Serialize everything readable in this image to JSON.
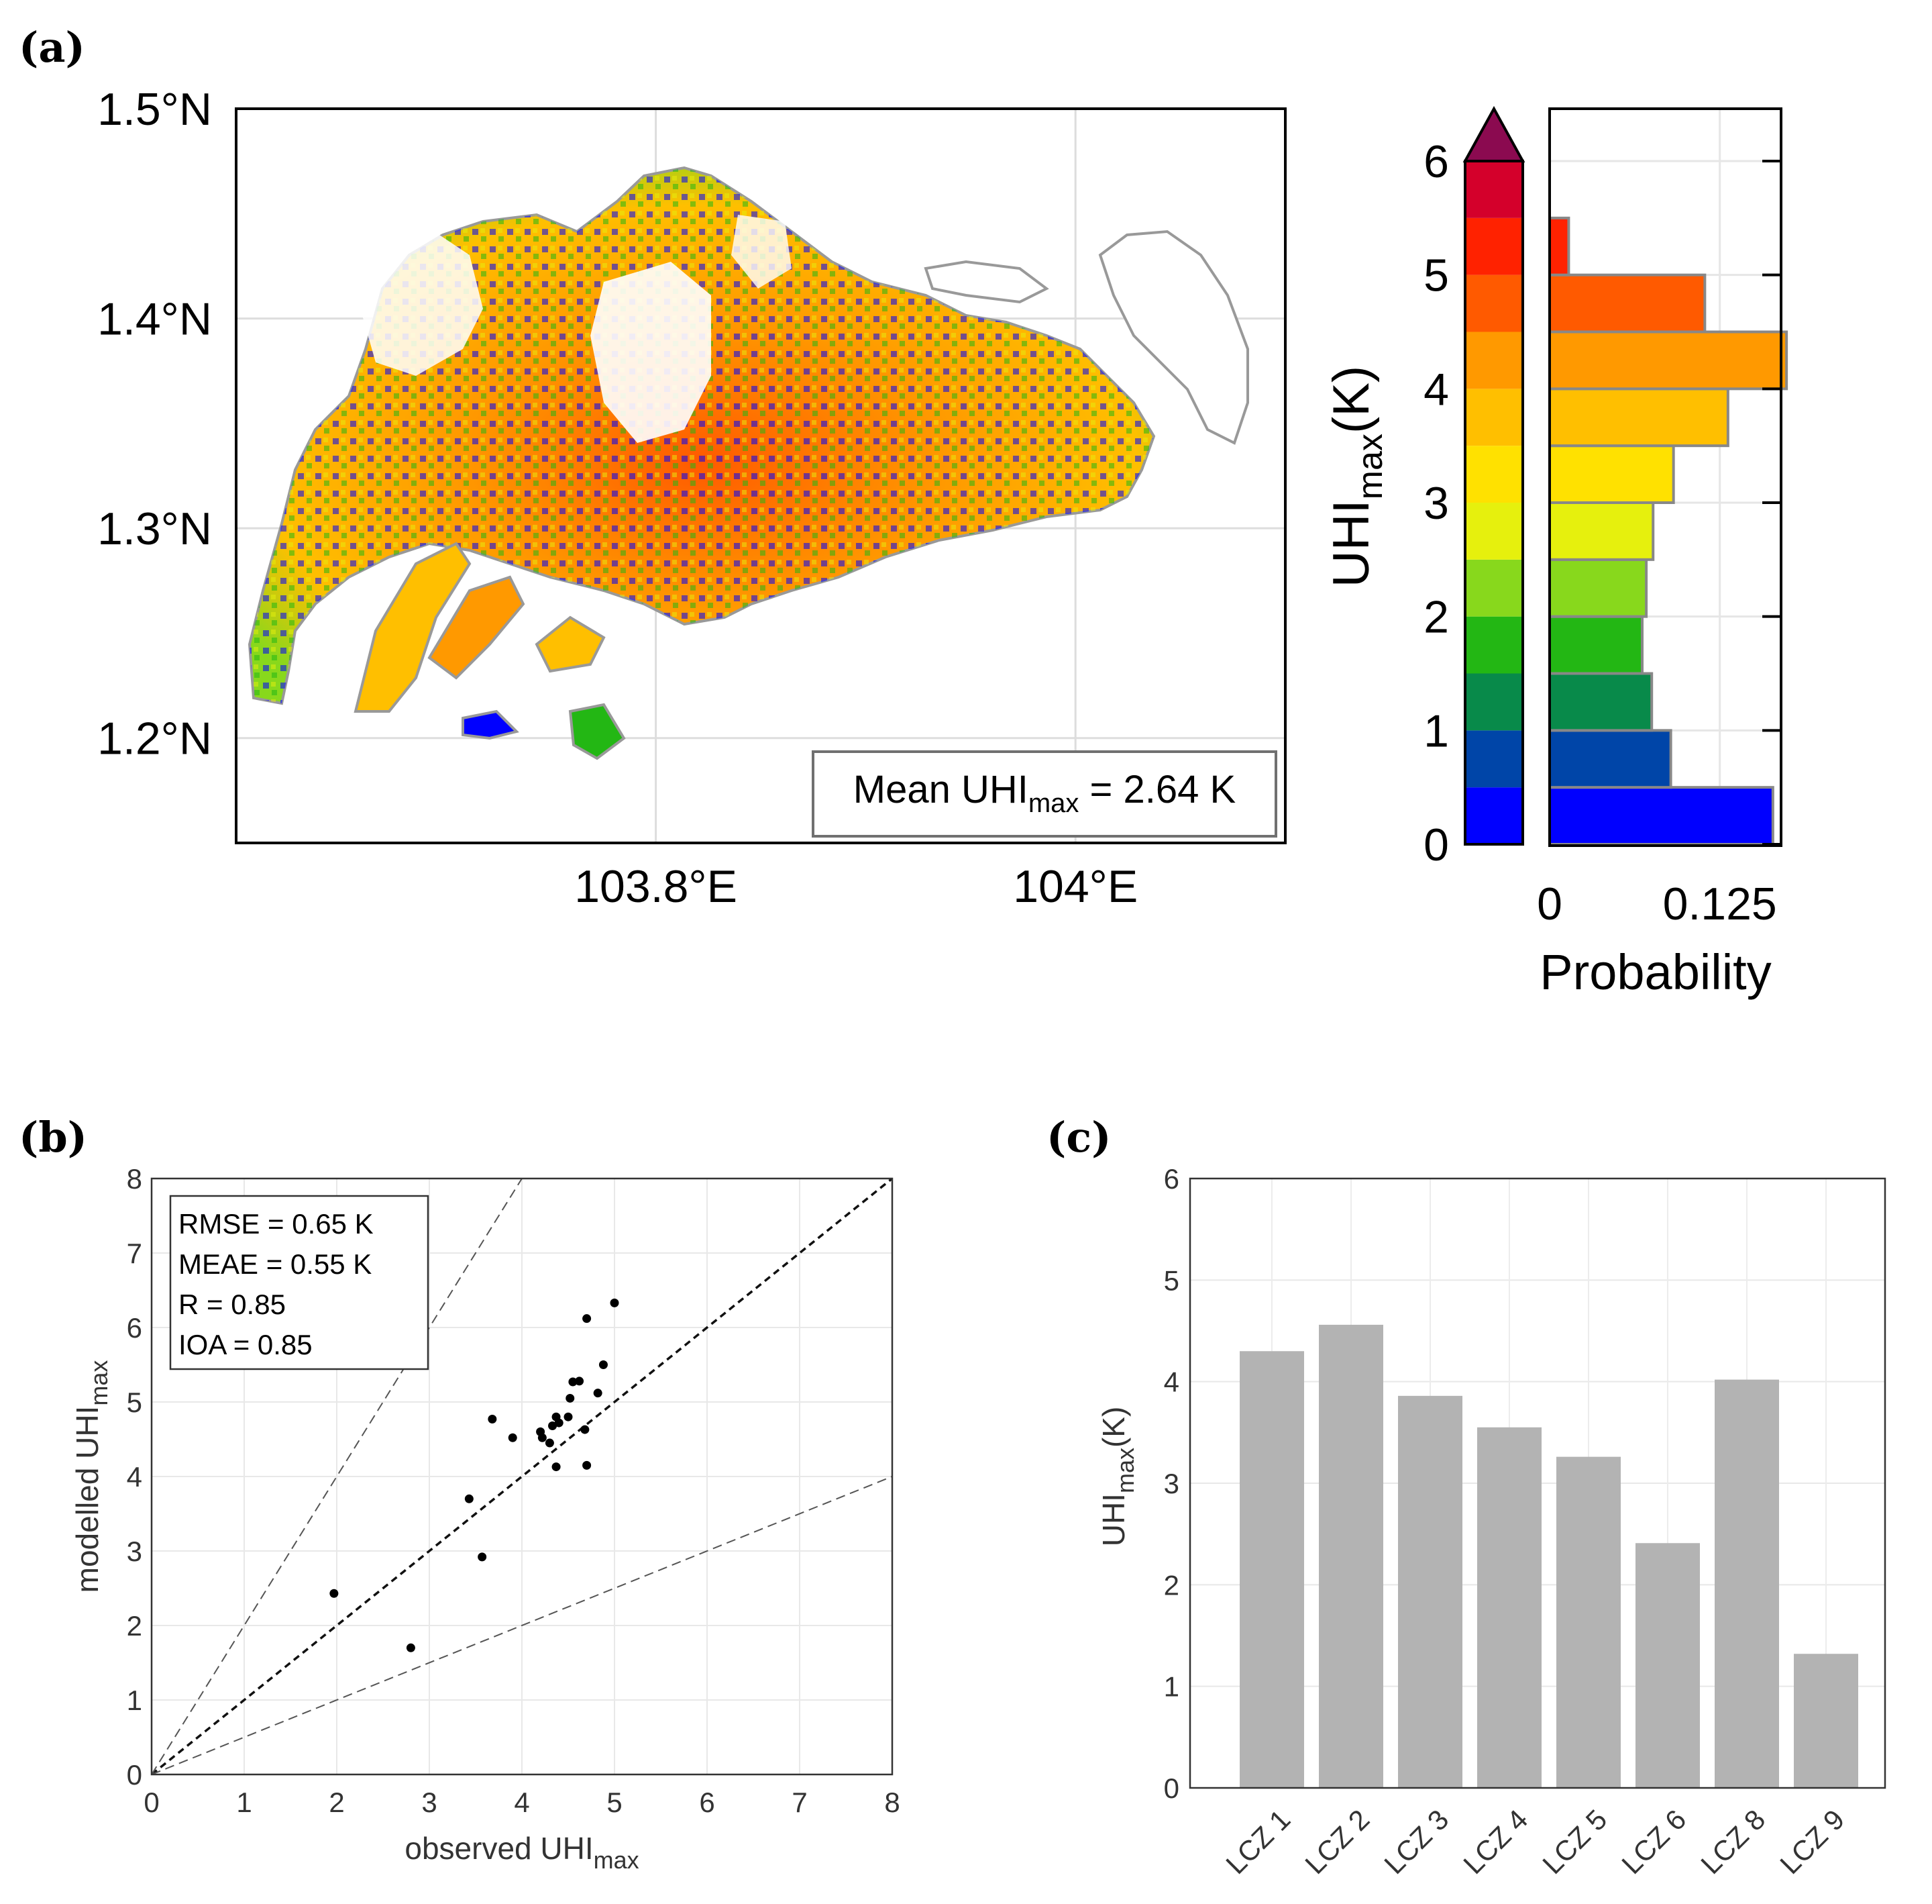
{
  "panels": {
    "a": {
      "label": "(a)"
    },
    "b": {
      "label": "(b)"
    },
    "c": {
      "label": "(c)"
    }
  },
  "chart_data": [
    {
      "id": "a-map",
      "type": "heatmap",
      "title": "",
      "lat_ticks": [
        "1.5°N",
        "1.4°N",
        "1.3°N",
        "1.2°N"
      ],
      "lon_ticks": [
        "103.8°E",
        "104°E"
      ],
      "lat_range": [
        1.15,
        1.5
      ],
      "lon_range": [
        103.6,
        104.1
      ],
      "annotation": {
        "prefix": "Mean UHI",
        "sub": "max",
        "suffix": " = 2.64 K"
      },
      "colors": {
        "outline": "#999999"
      }
    },
    {
      "id": "a-colorbar",
      "type": "bar",
      "ticks": [
        "0",
        "1",
        "2",
        "3",
        "4",
        "5",
        "6"
      ],
      "range": [
        0,
        6
      ],
      "step": 0.5,
      "extend": "max",
      "colors": [
        "#0000ff",
        "#0045a8",
        "#088a4a",
        "#23b714",
        "#88d81c",
        "#e6f00d",
        "#ffe100",
        "#ffbf00",
        "#ff9900",
        "#ff5a00",
        "#ff2200",
        "#d4002b",
        "#8b0a50"
      ]
    },
    {
      "id": "a-histogram",
      "type": "bar",
      "orientation": "horizontal",
      "xlabel": "Probability",
      "ylabel": {
        "prefix": "UHI",
        "sub": "max",
        "suffix": "(K)"
      },
      "xticks": [
        "0",
        "0.125"
      ],
      "xlim": [
        0,
        0.17
      ],
      "ylim": [
        0,
        6
      ],
      "yticks": [
        0,
        1,
        2,
        3,
        4,
        5,
        6
      ],
      "bins": [
        [
          0,
          0.5
        ],
        [
          0.5,
          1
        ],
        [
          1,
          1.5
        ],
        [
          1.5,
          2
        ],
        [
          2,
          2.5
        ],
        [
          2.5,
          3
        ],
        [
          3,
          3.5
        ],
        [
          3.5,
          4
        ],
        [
          4,
          4.5
        ],
        [
          4.5,
          5
        ],
        [
          5,
          5.5
        ]
      ],
      "values": [
        0.164,
        0.089,
        0.075,
        0.068,
        0.071,
        0.076,
        0.091,
        0.131,
        0.174,
        0.114,
        0.014
      ]
    },
    {
      "id": "b-scatter",
      "type": "scatter",
      "xlabel": {
        "prefix": "observed UHI",
        "sub": "max"
      },
      "ylabel": {
        "prefix": "modelled UHI",
        "sub": "max"
      },
      "xlim": [
        0,
        8
      ],
      "ylim": [
        0,
        8
      ],
      "xticks": [
        "0",
        "1",
        "2",
        "3",
        "4",
        "5",
        "6",
        "7",
        "8"
      ],
      "yticks": [
        "0",
        "1",
        "2",
        "3",
        "4",
        "5",
        "6",
        "7",
        "8"
      ],
      "stats": [
        "RMSE = 0.65 K",
        "MEAE = 0.55 K",
        "R = 0.85",
        "IOA = 0.85"
      ],
      "reference_lines": [
        {
          "name": "1:1",
          "slope": 1
        },
        {
          "name": "2:1",
          "slope": 2
        },
        {
          "name": "1:2",
          "slope": 0.5
        }
      ],
      "points": [
        {
          "x": 1.97,
          "y": 2.43
        },
        {
          "x": 2.8,
          "y": 1.7
        },
        {
          "x": 3.43,
          "y": 3.7
        },
        {
          "x": 3.57,
          "y": 2.92
        },
        {
          "x": 3.68,
          "y": 4.77
        },
        {
          "x": 3.9,
          "y": 4.52
        },
        {
          "x": 4.2,
          "y": 4.6
        },
        {
          "x": 4.22,
          "y": 4.52
        },
        {
          "x": 4.3,
          "y": 4.45
        },
        {
          "x": 4.33,
          "y": 4.68
        },
        {
          "x": 4.37,
          "y": 4.8
        },
        {
          "x": 4.37,
          "y": 4.13
        },
        {
          "x": 4.4,
          "y": 4.72
        },
        {
          "x": 4.5,
          "y": 4.8
        },
        {
          "x": 4.52,
          "y": 5.05
        },
        {
          "x": 4.55,
          "y": 5.27
        },
        {
          "x": 4.62,
          "y": 5.28
        },
        {
          "x": 4.68,
          "y": 4.63
        },
        {
          "x": 4.7,
          "y": 6.12
        },
        {
          "x": 4.7,
          "y": 4.15
        },
        {
          "x": 4.82,
          "y": 5.12
        },
        {
          "x": 4.88,
          "y": 5.5
        },
        {
          "x": 5.0,
          "y": 6.33
        }
      ]
    },
    {
      "id": "c-bar",
      "type": "bar",
      "categories": [
        "LCZ 1",
        "LCZ 2",
        "LCZ 3",
        "LCZ 4",
        "LCZ 5",
        "LCZ 6",
        "LCZ 8",
        "LCZ 9"
      ],
      "values": [
        4.3,
        4.56,
        3.86,
        3.55,
        3.26,
        2.41,
        4.02,
        1.32
      ],
      "ylabel": {
        "prefix": "UHI",
        "sub": "max",
        "suffix": "(K)"
      },
      "ylim": [
        0,
        6
      ],
      "yticks": [
        "0",
        "1",
        "2",
        "3",
        "4",
        "5",
        "6"
      ],
      "colors": {
        "bar": "#b3b3b3"
      }
    }
  ]
}
